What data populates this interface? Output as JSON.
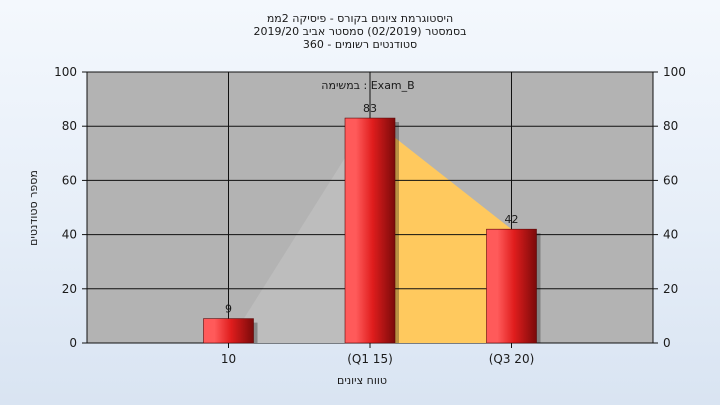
{
  "chart_data": {
    "type": "bar",
    "title_lines": [
      "היסטוגרמת ציונים בקורס - פיסיקה 2ממ",
      "בסמסטר  (02/2019)  סמסטר אביב 2019/20",
      "סטודנטים רשומים - 360"
    ],
    "annotation": "במשימה : Exam_B",
    "categories": [
      "10",
      "(Q1 15)",
      "(Q3 20)"
    ],
    "x_ticks": [
      10,
      15,
      20
    ],
    "x_range": [
      5,
      25
    ],
    "values": [
      9,
      83,
      42
    ],
    "data_labels": [
      "9",
      "83",
      "42"
    ],
    "area_series": [
      {
        "color": "#bdbdbd",
        "points": [
          [
            10,
            0
          ],
          [
            15,
            83
          ]
        ]
      },
      {
        "color": "#ffc95e",
        "points": [
          [
            15,
            83
          ],
          [
            20,
            42
          ]
        ]
      }
    ],
    "xlabel": "טווח ציונים",
    "ylabel": "מספר סטודנטים",
    "ylim": [
      0,
      100
    ],
    "yticks": [
      "0",
      "20",
      "40",
      "60",
      "80",
      "100"
    ],
    "grid": true,
    "colors": {
      "plot_bg": "#b3b3b3",
      "bar_light": "#ff5a5a",
      "bar_mid": "#e01d1d",
      "bar_dark": "#7a0a0a",
      "grid": "#111111"
    }
  }
}
